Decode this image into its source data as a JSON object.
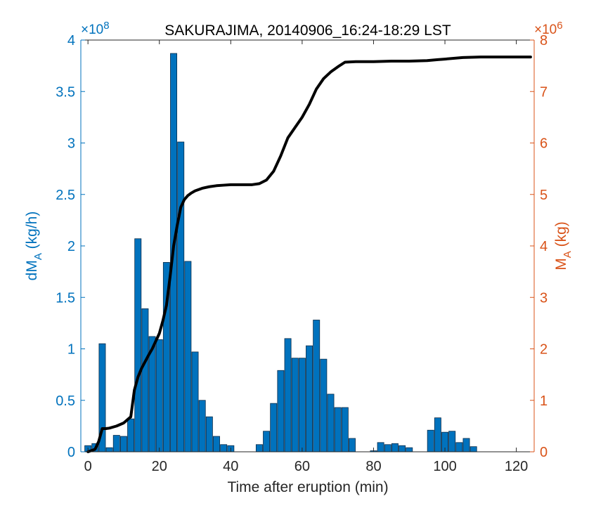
{
  "chart_data": {
    "type": "bar",
    "title": "SAKURAJIMA, 20140906_16:24-18:29 LST",
    "xlabel": "Time after eruption (min)",
    "ylabel_left": {
      "base": "dM",
      "sub": "A",
      "rest": " (kg/h)"
    },
    "ylabel_right": {
      "base": "M",
      "sub": "A",
      "rest": " (kg)"
    },
    "xlim": [
      -2,
      125
    ],
    "xticks": [
      0,
      20,
      40,
      60,
      80,
      100,
      120
    ],
    "ylim_left": [
      0,
      4
    ],
    "yticks_left": [
      "0",
      "0.5",
      "1",
      "1.5",
      "2",
      "2.5",
      "3",
      "3.5",
      "4"
    ],
    "left_exponent": {
      "base": "×10",
      "power": "8"
    },
    "ylim_right": [
      0,
      8
    ],
    "yticks_right": [
      "0",
      "1",
      "2",
      "3",
      "4",
      "5",
      "6",
      "7",
      "8"
    ],
    "right_exponent": {
      "base": "×10",
      "power": "6"
    },
    "colors": {
      "bars": "#0072BD",
      "right_axis": "#D95319",
      "line": "#000000"
    },
    "series": [
      {
        "name": "dM_A",
        "axis": "left",
        "type": "bar",
        "bar_width": 1.8,
        "x": [
          0,
          2,
          4,
          6,
          8,
          10,
          12,
          14,
          16,
          18,
          20,
          22,
          24,
          26,
          28,
          30,
          32,
          34,
          36,
          38,
          40,
          48,
          50,
          52,
          54,
          56,
          58,
          60,
          62,
          64,
          66,
          68,
          70,
          72,
          74,
          80,
          82,
          84,
          86,
          88,
          90,
          96,
          98,
          100,
          102,
          104,
          106,
          108
        ],
        "values": [
          0.06,
          0.08,
          1.05,
          0.04,
          0.16,
          0.15,
          0.32,
          2.07,
          1.39,
          1.12,
          1.09,
          1.84,
          3.87,
          3.01,
          1.85,
          0.97,
          0.5,
          0.34,
          0.15,
          0.07,
          0.06,
          0.07,
          0.2,
          0.47,
          0.79,
          1.1,
          0.91,
          0.91,
          1.03,
          1.28,
          0.9,
          0.56,
          0.43,
          0.43,
          0.13,
          0.01,
          0.09,
          0.07,
          0.08,
          0.06,
          0.04,
          0.21,
          0.33,
          0.19,
          0.2,
          0.09,
          0.13,
          0.05
        ]
      },
      {
        "name": "M_A",
        "axis": "right",
        "type": "line",
        "x": [
          0,
          2,
          3,
          4,
          5,
          6,
          8,
          10,
          12,
          13,
          14,
          15,
          16,
          17,
          18,
          20,
          21,
          22,
          23,
          24,
          25,
          26,
          27,
          28,
          29,
          30,
          32,
          34,
          36,
          38,
          40,
          42,
          44,
          46,
          48,
          50,
          52,
          54,
          56,
          58,
          60,
          62,
          64,
          66,
          68,
          70,
          72,
          75,
          80,
          85,
          90,
          95,
          98,
          100,
          105,
          110,
          115,
          124
        ],
        "values": [
          0.0,
          0.05,
          0.2,
          0.45,
          0.45,
          0.46,
          0.5,
          0.56,
          0.68,
          1.2,
          1.45,
          1.62,
          1.75,
          1.88,
          2.0,
          2.3,
          2.55,
          2.85,
          3.4,
          4.0,
          4.4,
          4.75,
          4.9,
          4.98,
          5.03,
          5.07,
          5.12,
          5.15,
          5.17,
          5.18,
          5.19,
          5.19,
          5.19,
          5.19,
          5.21,
          5.28,
          5.45,
          5.75,
          6.1,
          6.3,
          6.5,
          6.75,
          7.05,
          7.25,
          7.38,
          7.48,
          7.57,
          7.58,
          7.58,
          7.59,
          7.59,
          7.6,
          7.62,
          7.63,
          7.66,
          7.67,
          7.67,
          7.67
        ]
      }
    ],
    "grid": false
  }
}
